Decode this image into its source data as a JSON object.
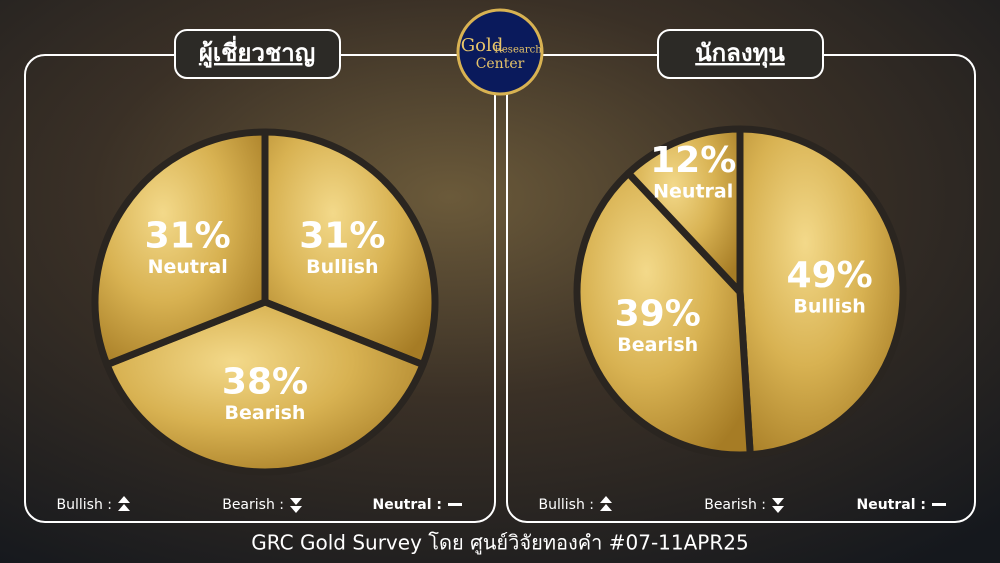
{
  "chart_data": [
    {
      "type": "pie",
      "title": "ผู้เชี่ยวชาญ",
      "categories": [
        "Bullish",
        "Bearish",
        "Neutral"
      ],
      "values": [
        31,
        38,
        31
      ],
      "value_labels": [
        "31%",
        "38%",
        "31%"
      ]
    },
    {
      "type": "pie",
      "title": "นักลงทุน",
      "categories": [
        "Bullish",
        "Bearish",
        "Neutral"
      ],
      "values": [
        49,
        39,
        12
      ],
      "value_labels": [
        "49%",
        "39%",
        "12%"
      ]
    }
  ],
  "logo": {
    "line1": "Gold",
    "line2": "Research",
    "line3": "Center"
  },
  "legend": [
    "Bullish :",
    "Bearish :",
    "Neutral :"
  ],
  "footer": "GRC Gold Survey โดย ศูนย์วิจัยทองคำ #07-11APR25"
}
